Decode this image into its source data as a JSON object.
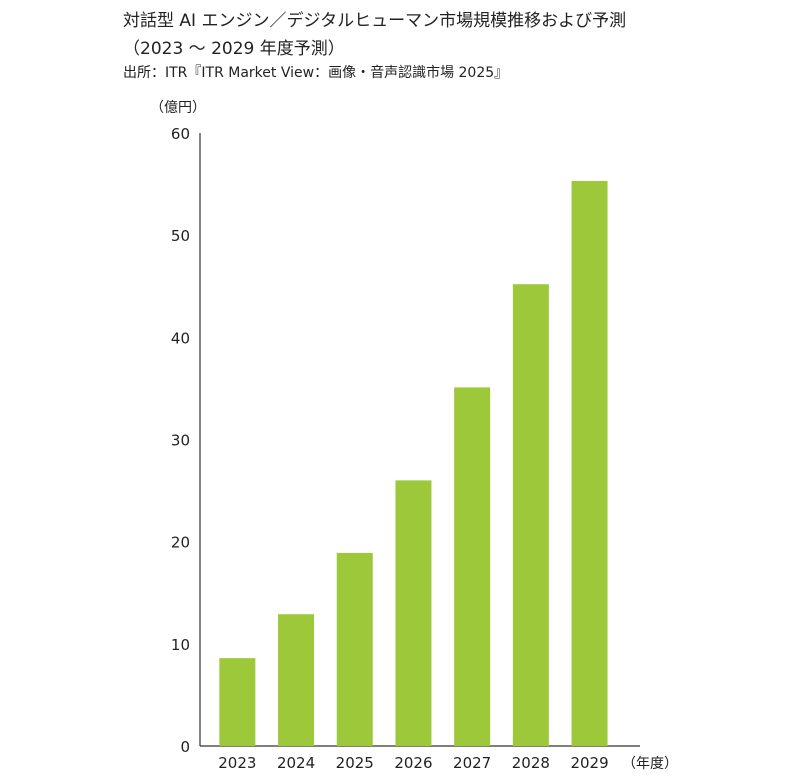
{
  "chart_data": {
    "type": "bar",
    "title": "対話型 AI エンジン／デジタルヒューマン市場規模推移および予測",
    "subtitle": "（2023 ～ 2029 年度予測）",
    "source": "出所：ITR『ITR Market View：画像・音声認識市場 2025』",
    "ylabel": "（億円）",
    "xlabel": "（年度）",
    "categories": [
      "2023",
      "2024",
      "2025",
      "2026",
      "2027",
      "2028",
      "2029"
    ],
    "values": [
      8.6,
      12.9,
      18.9,
      26.0,
      35.1,
      45.2,
      55.3
    ],
    "ylim": [
      0,
      60
    ],
    "yticks": [
      0,
      10,
      20,
      30,
      40,
      50,
      60
    ],
    "grid": false,
    "bar_color": "#9dc83a"
  }
}
